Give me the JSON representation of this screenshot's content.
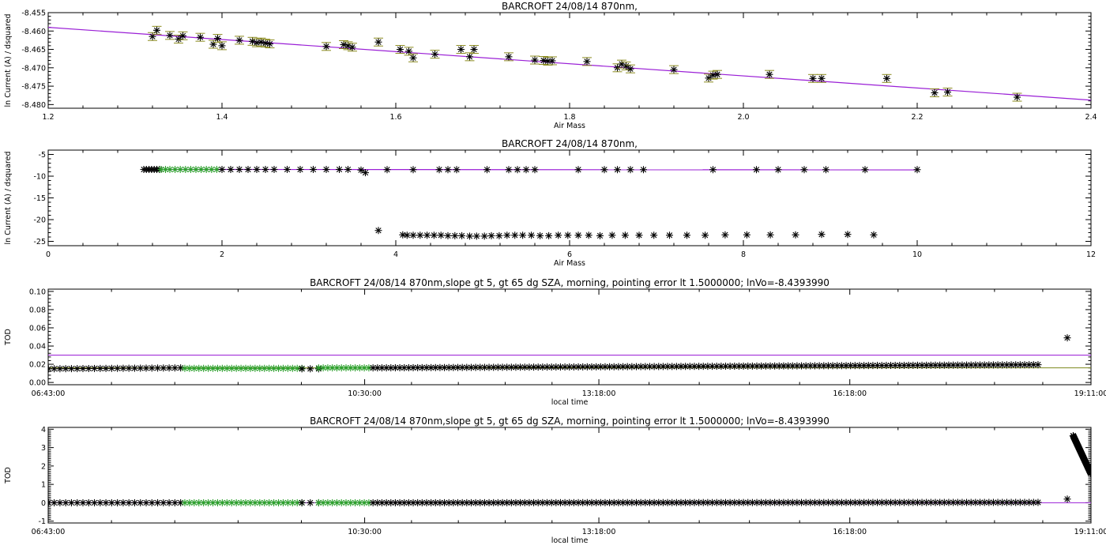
{
  "figure": {
    "colors": {
      "axis": "#000000",
      "fit": "#9a1fd6",
      "highlight": "#2ca02c",
      "errorbar": "#8b8b1e",
      "marker": "#000000",
      "olive_line": "#7d8a1e"
    }
  },
  "chart_data": [
    {
      "id": "langley-zoom",
      "type": "scatter",
      "title": "BARCROFT 24/08/14 870nm,",
      "xlabel": "Air Mass",
      "ylabel": "ln Current (A) / dsquared",
      "xlim": [
        1.2,
        2.4
      ],
      "ylim": [
        -8.481,
        -8.455
      ],
      "xticks": [
        1.2,
        1.4,
        1.6,
        1.8,
        2.0,
        2.2,
        2.4
      ],
      "xtick_labels": [
        "1.2",
        "1.4",
        "1.6",
        "1.8",
        "2.0",
        "2.2",
        "2.4"
      ],
      "yticks": [
        -8.48,
        -8.475,
        -8.47,
        -8.465,
        -8.46,
        -8.455
      ],
      "ytick_labels": [
        "-8.480",
        "-8.475",
        "-8.470",
        "-8.465",
        "-8.460",
        "-8.455"
      ],
      "fit_line": {
        "x": [
          1.2,
          2.4
        ],
        "y": [
          -8.459,
          -8.4788
        ]
      },
      "series": [
        {
          "marker": "asterisk",
          "errorbars": true,
          "x": [
            1.32,
            1.325,
            1.34,
            1.35,
            1.355,
            1.375,
            1.39,
            1.395,
            1.4,
            1.42,
            1.435,
            1.44,
            1.445,
            1.45,
            1.455,
            1.52,
            1.54,
            1.545,
            1.55,
            1.58,
            1.605,
            1.615,
            1.62,
            1.645,
            1.675,
            1.685,
            1.69,
            1.73,
            1.76,
            1.77,
            1.775,
            1.78,
            1.82,
            1.855,
            1.86,
            1.865,
            1.87,
            1.92,
            1.96,
            1.965,
            1.97,
            2.03,
            2.08,
            2.09,
            2.165,
            2.22,
            2.235,
            2.315
          ],
          "y": [
            -8.4615,
            -8.4598,
            -8.4612,
            -8.4622,
            -8.4613,
            -8.4617,
            -8.4636,
            -8.462,
            -8.464,
            -8.4625,
            -8.4628,
            -8.4632,
            -8.463,
            -8.4633,
            -8.4635,
            -8.4642,
            -8.4637,
            -8.464,
            -8.4644,
            -8.463,
            -8.465,
            -8.4655,
            -8.4673,
            -8.4663,
            -8.465,
            -8.467,
            -8.465,
            -8.467,
            -8.4679,
            -8.468,
            -8.4682,
            -8.4681,
            -8.4683,
            -8.47,
            -8.469,
            -8.4695,
            -8.4703,
            -8.4705,
            -8.4728,
            -8.472,
            -8.4718,
            -8.4718,
            -8.4729,
            -8.4729,
            -8.4729,
            -8.4768,
            -8.4766,
            -8.478
          ]
        }
      ]
    },
    {
      "id": "langley-full",
      "type": "scatter",
      "title": "BARCROFT 24/08/14 870nm,",
      "xlabel": "Air Mass",
      "ylabel": "ln Current (A) / dsquared",
      "xlim": [
        0,
        12
      ],
      "ylim": [
        -26,
        -4
      ],
      "xticks": [
        0,
        2,
        4,
        6,
        8,
        10,
        12
      ],
      "xtick_labels": [
        "0",
        "2",
        "4",
        "6",
        "8",
        "10",
        "12"
      ],
      "yticks": [
        -25,
        -20,
        -15,
        -10,
        -5
      ],
      "ytick_labels": [
        "-25",
        "-20",
        "-15",
        "-10",
        "-5"
      ],
      "fit_line": {
        "x": [
          1.1,
          10.0
        ],
        "y": [
          -8.45,
          -8.55
        ]
      },
      "series": [
        {
          "marker": "asterisk",
          "color": "#000000",
          "x": [
            1.1,
            1.13,
            1.16,
            1.19,
            1.22,
            1.25,
            1.28
          ],
          "y": [
            -8.45,
            -8.45,
            -8.45,
            -8.45,
            -8.45,
            -8.45,
            -8.45
          ]
        },
        {
          "marker": "asterisk",
          "color": "#2ca02c",
          "x": [
            1.3,
            1.35,
            1.4,
            1.46,
            1.52,
            1.58,
            1.64,
            1.7,
            1.76,
            1.82,
            1.88,
            1.94
          ],
          "y": [
            -8.45,
            -8.45,
            -8.45,
            -8.45,
            -8.45,
            -8.45,
            -8.45,
            -8.45,
            -8.45,
            -8.45,
            -8.45,
            -8.45
          ]
        },
        {
          "marker": "asterisk",
          "color": "#000000",
          "x": [
            2.0,
            2.1,
            2.2,
            2.3,
            2.4,
            2.5,
            2.6,
            2.75,
            2.9,
            3.05,
            3.2,
            3.35,
            3.45,
            3.6,
            3.65,
            3.9,
            4.2,
            4.5,
            4.6,
            4.7,
            5.05,
            5.3,
            5.4,
            5.5,
            5.6,
            6.1,
            6.4,
            6.55,
            6.7,
            6.85,
            7.65,
            8.15,
            8.4,
            8.7,
            8.95,
            9.4,
            10.0
          ],
          "y": [
            -8.45,
            -8.45,
            -8.45,
            -8.45,
            -8.45,
            -8.45,
            -8.45,
            -8.45,
            -8.45,
            -8.45,
            -8.45,
            -8.45,
            -8.45,
            -8.6,
            -9.2,
            -8.5,
            -8.5,
            -8.5,
            -8.5,
            -8.5,
            -8.5,
            -8.5,
            -8.5,
            -8.5,
            -8.5,
            -8.5,
            -8.5,
            -8.5,
            -8.5,
            -8.5,
            -8.5,
            -8.5,
            -8.5,
            -8.5,
            -8.5,
            -8.5,
            -8.5
          ]
        },
        {
          "marker": "asterisk",
          "color": "#000000",
          "x": [
            3.8,
            4.08,
            4.13,
            4.2,
            4.28,
            4.36,
            4.44,
            4.52,
            4.6,
            4.68,
            4.76,
            4.85,
            4.93,
            5.02,
            5.1,
            5.19,
            5.28,
            5.37,
            5.46,
            5.56,
            5.66,
            5.76,
            5.87,
            5.98,
            6.1,
            6.22,
            6.35,
            6.49,
            6.64,
            6.8,
            6.97,
            7.15,
            7.35,
            7.56,
            7.79,
            8.04,
            8.31,
            8.6,
            8.9,
            9.2,
            9.5
          ],
          "y": [
            -22.5,
            -23.5,
            -23.6,
            -23.6,
            -23.6,
            -23.6,
            -23.6,
            -23.6,
            -23.7,
            -23.7,
            -23.7,
            -23.8,
            -23.8,
            -23.8,
            -23.7,
            -23.7,
            -23.6,
            -23.6,
            -23.6,
            -23.6,
            -23.7,
            -23.7,
            -23.6,
            -23.6,
            -23.6,
            -23.6,
            -23.7,
            -23.6,
            -23.6,
            -23.6,
            -23.6,
            -23.6,
            -23.6,
            -23.6,
            -23.5,
            -23.5,
            -23.5,
            -23.5,
            -23.4,
            -23.4,
            -23.5
          ]
        }
      ]
    },
    {
      "id": "tod-zoom",
      "type": "scatter",
      "title": "BARCROFT 24/08/14 870nm,slope gt 5, gt 65 dg SZA, morning, pointing error lt 1.5000000; lnVo=-8.4393990",
      "xlabel": "local time",
      "ylabel": "TOD",
      "xlim": [
        6.7167,
        19.1833
      ],
      "ylim": [
        -0.0025,
        0.1025
      ],
      "xticks": [
        6.7167,
        10.5,
        13.3,
        16.3,
        19.1833
      ],
      "xtick_labels": [
        "06:43:00",
        "10:30:00",
        "13:18:00",
        "16:18:00",
        "19:11:00"
      ],
      "yticks": [
        0.0,
        0.02,
        0.04,
        0.06,
        0.08,
        0.1
      ],
      "ytick_labels": [
        "0.00",
        "0.02",
        "0.04",
        "0.06",
        "0.08",
        "0.10"
      ],
      "reference_lines": [
        {
          "y": 0.03,
          "color": "#9a1fd6"
        },
        {
          "y": 0.016,
          "color": "#7d8a1e"
        }
      ],
      "series": [
        {
          "marker": "asterisk",
          "color": "#000000",
          "x_range": [
            6.72,
            8.3
          ],
          "count": 24,
          "y_start": 0.015,
          "y_end": 0.016
        },
        {
          "marker": "asterisk",
          "color": "#2ca02c",
          "x_range": [
            8.35,
            9.75
          ],
          "count": 26,
          "y_start": 0.0155,
          "y_end": 0.0155
        },
        {
          "marker": "asterisk",
          "color": "#000000",
          "x_range": [
            9.75,
            9.95
          ],
          "count": 3,
          "y_start": 0.015,
          "y_end": 0.015
        },
        {
          "marker": "asterisk",
          "color": "#2ca02c",
          "x_range": [
            9.95,
            10.55
          ],
          "count": 12,
          "y_start": 0.016,
          "y_end": 0.016
        },
        {
          "marker": "asterisk",
          "color": "#000000",
          "x_range": [
            10.6,
            18.55
          ],
          "count": 150,
          "y_start": 0.016,
          "y_end": 0.0195
        },
        {
          "marker": "asterisk",
          "color": "#000000",
          "x": [
            18.9
          ],
          "y": [
            0.049
          ]
        }
      ]
    },
    {
      "id": "tod-full",
      "type": "scatter",
      "title": "BARCROFT 24/08/14 870nm,slope gt 5, gt 65 dg SZA, morning, pointing error lt 1.5000000; lnVo=-8.4393990",
      "xlabel": "local time",
      "ylabel": "TOD",
      "xlim": [
        6.7167,
        19.1833
      ],
      "ylim": [
        -1.1,
        4.1
      ],
      "xticks": [
        6.7167,
        10.5,
        13.3,
        16.3,
        19.1833
      ],
      "xtick_labels": [
        "06:43:00",
        "10:30:00",
        "13:18:00",
        "16:18:00",
        "19:11:00"
      ],
      "yticks": [
        -1,
        0,
        1,
        2,
        3,
        4
      ],
      "ytick_labels": [
        "-1",
        "0",
        "1",
        "2",
        "3",
        "4"
      ],
      "reference_lines": [
        {
          "y": 0.0,
          "color": "#9a1fd6"
        }
      ],
      "series": [
        {
          "marker": "asterisk",
          "color": "#000000",
          "x_range": [
            6.72,
            8.3
          ],
          "count": 24,
          "y_start": 0.0,
          "y_end": 0.0
        },
        {
          "marker": "asterisk",
          "color": "#2ca02c",
          "x_range": [
            8.35,
            9.75
          ],
          "count": 26,
          "y_start": 0.0,
          "y_end": 0.0
        },
        {
          "marker": "asterisk",
          "color": "#000000",
          "x_range": [
            9.75,
            9.95
          ],
          "count": 3,
          "y_start": 0.0,
          "y_end": 0.0
        },
        {
          "marker": "asterisk",
          "color": "#2ca02c",
          "x_range": [
            9.95,
            10.55
          ],
          "count": 12,
          "y_start": 0.0,
          "y_end": 0.0
        },
        {
          "marker": "asterisk",
          "color": "#000000",
          "x_range": [
            10.6,
            18.55
          ],
          "count": 150,
          "y_start": 0.0,
          "y_end": 0.02
        },
        {
          "marker": "asterisk",
          "color": "#000000",
          "x": [
            18.9
          ],
          "y": [
            0.2
          ]
        },
        {
          "marker": "asterisk",
          "color": "#000000",
          "x_range": [
            18.97,
            19.18
          ],
          "count": 60,
          "y_start": 3.65,
          "y_end": 1.6
        }
      ]
    }
  ]
}
